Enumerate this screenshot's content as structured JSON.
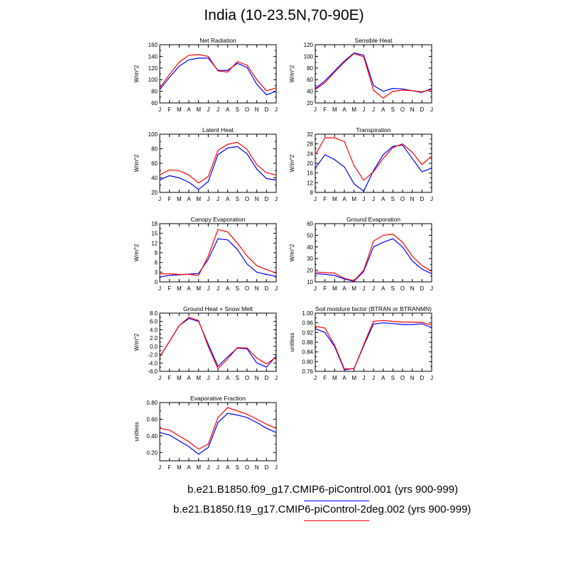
{
  "title": "India (10-23.5N,70-90E)",
  "colors": {
    "series1": "#0000ff",
    "series2": "#ff0000",
    "axis": "#000000"
  },
  "legend": {
    "entries": [
      {
        "label": "b.e21.B1850.f09_g17.CMIP6-piControl.001 (yrs 900-999)",
        "color": "#0000ff"
      },
      {
        "label": "b.e21.B1850.f19_g17.CMIP6-piControl-2deg.002 (yrs 900-999)",
        "color": "#ff0000"
      }
    ]
  },
  "chart_data": [
    {
      "type": "line",
      "title": "Net Radiation",
      "xlabel": "",
      "ylabel": "W/m^2",
      "categories": [
        "J",
        "F",
        "M",
        "A",
        "M",
        "J",
        "J",
        "A",
        "S",
        "O",
        "N",
        "D",
        "J"
      ],
      "ylim": [
        60,
        160
      ],
      "yticks": [
        "60",
        "80",
        "100",
        "120",
        "140",
        "160"
      ],
      "grid": false,
      "series": [
        {
          "values": [
            83,
            104,
            123,
            134,
            137,
            137,
            116,
            116,
            128,
            121,
            92,
            74,
            80
          ]
        },
        {
          "values": [
            86,
            109,
            130,
            142,
            143,
            140,
            115,
            113,
            131,
            125,
            100,
            81,
            86
          ]
        }
      ]
    },
    {
      "type": "line",
      "title": "Sensible Heat",
      "xlabel": "",
      "ylabel": "W/m^2",
      "categories": [
        "J",
        "F",
        "M",
        "A",
        "M",
        "J",
        "J",
        "A",
        "S",
        "O",
        "N",
        "D",
        "J"
      ],
      "ylim": [
        20,
        120
      ],
      "yticks": [
        "20",
        "40",
        "60",
        "80",
        "100",
        "120"
      ],
      "grid": false,
      "series": [
        {
          "values": [
            45,
            58,
            75,
            92,
            106,
            102,
            50,
            40,
            45,
            44,
            41,
            38,
            45
          ]
        },
        {
          "values": [
            43,
            55,
            73,
            90,
            105,
            99,
            42,
            28,
            40,
            42,
            41,
            39,
            43
          ]
        }
      ]
    },
    {
      "type": "line",
      "title": "Latent Heat",
      "xlabel": "",
      "ylabel": "W/m^2",
      "categories": [
        "J",
        "F",
        "M",
        "A",
        "M",
        "J",
        "J",
        "A",
        "S",
        "O",
        "N",
        "D",
        "J"
      ],
      "ylim": [
        20,
        100
      ],
      "yticks": [
        "20",
        "40",
        "60",
        "80",
        "100"
      ],
      "grid": false,
      "series": [
        {
          "values": [
            37,
            43,
            40,
            34,
            24,
            35,
            72,
            81,
            83,
            73,
            52,
            39,
            37
          ]
        },
        {
          "values": [
            44,
            51,
            50,
            44,
            33,
            42,
            78,
            86,
            89,
            79,
            58,
            47,
            44
          ]
        }
      ]
    },
    {
      "type": "line",
      "title": "Transpiration",
      "xlabel": "",
      "ylabel": "W/m^2",
      "categories": [
        "J",
        "F",
        "M",
        "A",
        "M",
        "J",
        "J",
        "A",
        "S",
        "O",
        "N",
        "D",
        "J"
      ],
      "ylim": [
        8,
        32
      ],
      "yticks": [
        "8",
        "12",
        "16",
        "20",
        "24",
        "28",
        "32"
      ],
      "grid": false,
      "series": [
        {
          "values": [
            18,
            23.5,
            21.5,
            18.5,
            11.5,
            8.5,
            17,
            23.5,
            27,
            27.5,
            22,
            16.5,
            18
          ]
        },
        {
          "values": [
            23.5,
            30.5,
            30.5,
            29,
            19,
            13,
            16.5,
            22,
            26.5,
            28,
            24.5,
            19.5,
            23
          ]
        }
      ]
    },
    {
      "type": "line",
      "title": "Canopy Evaporation",
      "xlabel": "",
      "ylabel": "W/m^2",
      "categories": [
        "J",
        "F",
        "M",
        "A",
        "M",
        "J",
        "J",
        "A",
        "S",
        "O",
        "N",
        "D",
        "J"
      ],
      "ylim": [
        0,
        18
      ],
      "yticks": [
        "0",
        "3",
        "6",
        "9",
        "12",
        "15",
        "18"
      ],
      "grid": false,
      "series": [
        {
          "values": [
            1.5,
            2.0,
            2.2,
            2.4,
            2.6,
            7.0,
            13.3,
            13.0,
            10.0,
            5.5,
            3.0,
            2.3,
            1.7
          ]
        },
        {
          "values": [
            2.5,
            2.5,
            2.3,
            2.3,
            2.0,
            8.0,
            16.2,
            15.4,
            12.0,
            8.0,
            5.0,
            3.8,
            2.7
          ]
        }
      ]
    },
    {
      "type": "line",
      "title": "Ground Evaporation",
      "xlabel": "",
      "ylabel": "W/m^2",
      "categories": [
        "J",
        "F",
        "M",
        "A",
        "M",
        "J",
        "J",
        "A",
        "S",
        "O",
        "N",
        "D",
        "J"
      ],
      "ylim": [
        10,
        60
      ],
      "yticks": [
        "10",
        "20",
        "30",
        "40",
        "50",
        "60"
      ],
      "grid": false,
      "series": [
        {
          "values": [
            17,
            16.5,
            15.5,
            12.5,
            10.5,
            19,
            40,
            44,
            47,
            40,
            28,
            21,
            17
          ]
        },
        {
          "values": [
            18.5,
            18,
            17.5,
            13,
            11,
            20,
            45,
            50,
            51,
            44,
            32,
            24,
            19
          ]
        }
      ]
    },
    {
      "type": "line",
      "title": "Ground Heat + Snow Melt",
      "xlabel": "",
      "ylabel": "W/m^2",
      "categories": [
        "J",
        "F",
        "M",
        "A",
        "M",
        "J",
        "J",
        "A",
        "S",
        "O",
        "N",
        "D",
        "J"
      ],
      "ylim": [
        -6,
        8
      ],
      "yticks": [
        "-6.0",
        "-4.0",
        "-2.0",
        "0.0",
        "2.0",
        "4.0",
        "6.0",
        "8.0"
      ],
      "grid": false,
      "series": [
        {
          "values": [
            -2.5,
            1.2,
            5.0,
            6.7,
            6.0,
            0.5,
            -4.8,
            -2.5,
            -0.4,
            -0.6,
            -4.0,
            -5.0,
            -2.3
          ]
        },
        {
          "values": [
            -2.5,
            1.2,
            5.0,
            7.0,
            6.2,
            0.0,
            -5.4,
            -3.0,
            -0.3,
            -0.4,
            -2.8,
            -4.2,
            -2.6
          ]
        }
      ]
    },
    {
      "type": "line",
      "title": "Soil moisture factor (BTRAN or BTRANMN)",
      "xlabel": "",
      "ylabel": "unitless",
      "categories": [
        "J",
        "F",
        "M",
        "A",
        "M",
        "J",
        "J",
        "A",
        "S",
        "O",
        "N",
        "D",
        "J"
      ],
      "ylim": [
        0.76,
        1.0
      ],
      "yticks": [
        "0.76",
        "0.80",
        "0.84",
        "0.88",
        "0.92",
        "0.96",
        "1.00"
      ],
      "grid": false,
      "series": [
        {
          "values": [
            0.936,
            0.92,
            0.862,
            0.766,
            0.772,
            0.865,
            0.955,
            0.96,
            0.957,
            0.953,
            0.953,
            0.956,
            0.94
          ]
        },
        {
          "values": [
            0.946,
            0.938,
            0.868,
            0.77,
            0.771,
            0.87,
            0.966,
            0.97,
            0.966,
            0.963,
            0.963,
            0.962,
            0.95
          ]
        }
      ]
    },
    {
      "type": "line",
      "title": "Evaporative Fraction",
      "xlabel": "",
      "ylabel": "unitless",
      "categories": [
        "J",
        "F",
        "M",
        "A",
        "M",
        "J",
        "J",
        "A",
        "S",
        "O",
        "N",
        "D",
        "J"
      ],
      "ylim": [
        0.1,
        0.8
      ],
      "yticks": [
        "0.20",
        "0.40",
        "0.60",
        "0.80"
      ],
      "yticks_values": [
        0.2,
        0.4,
        0.6,
        0.8
      ],
      "grid": false,
      "series": [
        {
          "values": [
            0.44,
            0.41,
            0.34,
            0.27,
            0.18,
            0.26,
            0.56,
            0.67,
            0.65,
            0.62,
            0.56,
            0.49,
            0.44
          ]
        },
        {
          "values": [
            0.49,
            0.47,
            0.4,
            0.33,
            0.24,
            0.3,
            0.62,
            0.74,
            0.7,
            0.66,
            0.6,
            0.54,
            0.49
          ]
        }
      ]
    }
  ]
}
